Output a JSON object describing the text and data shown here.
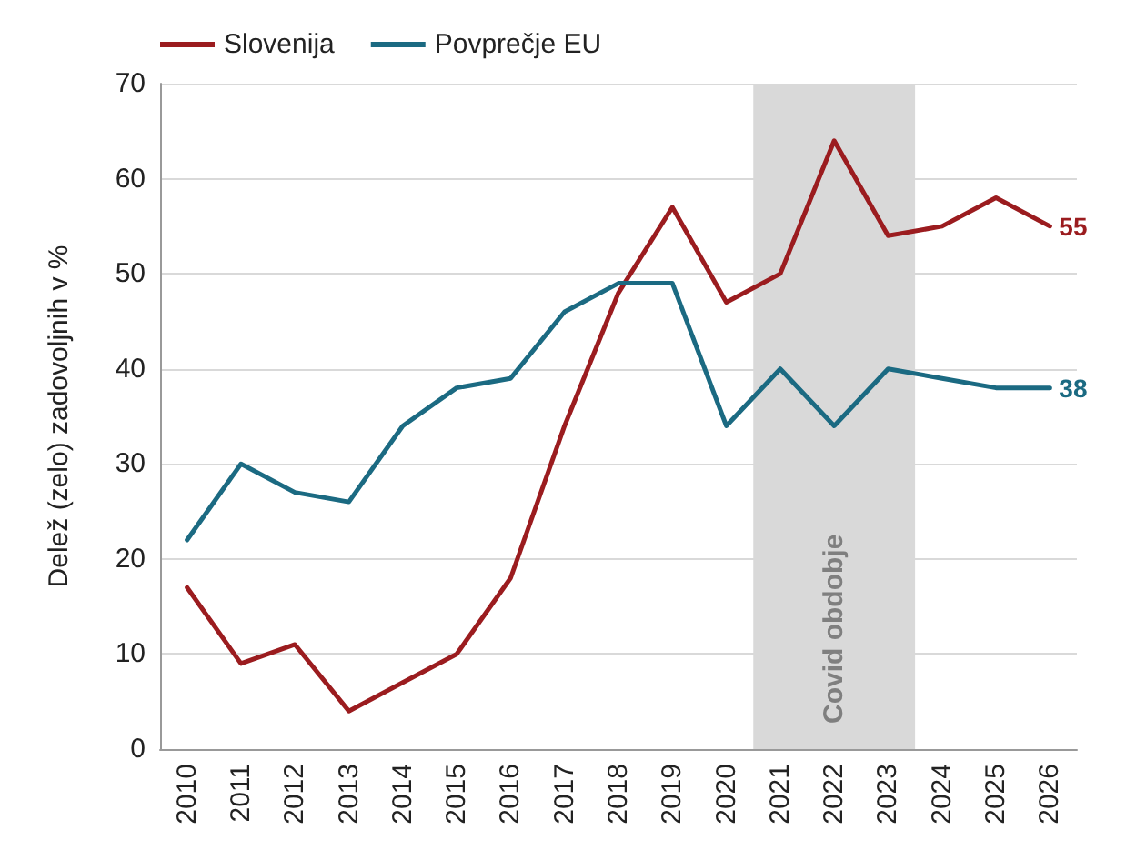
{
  "chart_data": {
    "type": "line",
    "ylabel": "Delež (zelo) zadovoljnih v %",
    "x": [
      2010,
      2011,
      2012,
      2013,
      2014,
      2015,
      2016,
      2017,
      2018,
      2019,
      2020,
      2021,
      2022,
      2023,
      2024,
      2025,
      2026
    ],
    "series": [
      {
        "name": "Slovenija",
        "color": "#9b1c1f",
        "values": [
          17,
          9,
          11,
          4,
          7,
          10,
          18,
          34,
          48,
          57,
          47,
          50,
          64,
          54,
          55,
          58,
          55
        ],
        "value_labels": [
          null,
          null,
          null,
          null,
          null,
          null,
          null,
          null,
          null,
          null,
          null,
          null,
          null,
          null,
          null,
          null,
          "55"
        ]
      },
      {
        "name": "Povprečje EU",
        "color": "#1b6a82",
        "values": [
          22,
          30,
          27,
          26,
          34,
          38,
          39,
          46,
          49,
          49,
          34,
          40,
          34,
          40,
          39,
          38,
          38
        ],
        "value_labels": [
          null,
          null,
          null,
          null,
          null,
          null,
          null,
          null,
          null,
          null,
          null,
          null,
          null,
          null,
          null,
          null,
          "38"
        ]
      }
    ],
    "xlim": [
      2009.5,
      2026.5
    ],
    "xticks": [
      2010,
      2011,
      2012,
      2013,
      2014,
      2015,
      2016,
      2017,
      2018,
      2019,
      2020,
      2021,
      2022,
      2023,
      2024,
      2025,
      2026
    ],
    "ylim": [
      0,
      70
    ],
    "yticks": [
      0,
      10,
      20,
      30,
      40,
      50,
      60,
      70
    ],
    "bands": [
      {
        "axis": "x",
        "from": 2020.5,
        "to": 2023.5,
        "label": "Covid obdobje",
        "color": "#d9d9d9"
      }
    ],
    "grid": "y",
    "legend": "top left",
    "marker": "none",
    "line_style": "solid"
  }
}
